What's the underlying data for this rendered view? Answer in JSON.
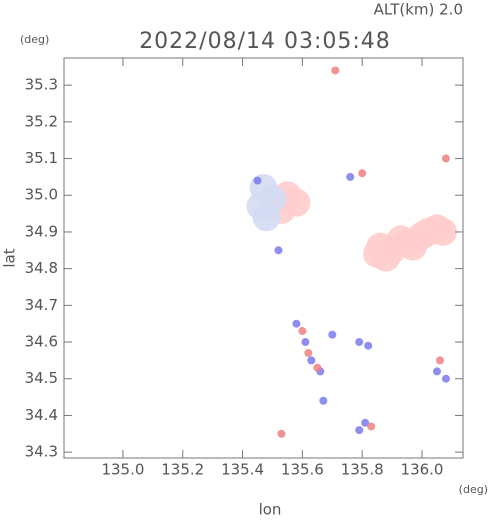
{
  "chart_data": {
    "type": "scatter",
    "title": "2022/08/14 03:05:48",
    "altitude_label": "ALT(km) 2.0",
    "y_unit": "(deg)",
    "x_unit": "(deg)",
    "x_label": "lon",
    "y_label": "lat",
    "xlim": [
      134.803,
      136.137
    ],
    "ylim": [
      34.284,
      35.374
    ],
    "xticks": [
      {
        "value": 135.0,
        "label": "135.0"
      },
      {
        "value": 135.2,
        "label": "135.2"
      },
      {
        "value": 135.4,
        "label": "135.4"
      },
      {
        "value": 135.6,
        "label": "135.6"
      },
      {
        "value": 135.8,
        "label": "135.8"
      },
      {
        "value": 136.0,
        "label": "136.0"
      }
    ],
    "yticks": [
      {
        "value": 34.3,
        "label": "34.3"
      },
      34.4,
      34.5,
      34.6,
      34.7,
      34.8,
      34.9,
      {
        "value": 35.0,
        "label": "35.0"
      },
      35.1,
      35.2,
      35.3
    ],
    "series": [
      {
        "color": "#ffcccc",
        "x": [
          135.85,
          135.9,
          135.95,
          136.0,
          136.05,
          135.88,
          135.97,
          136.02,
          136.07,
          135.93,
          135.86,
          135.55,
          135.58,
          135.53
        ],
        "y": [
          34.84,
          34.85,
          34.87,
          34.89,
          34.91,
          34.83,
          34.86,
          34.9,
          34.9,
          34.88,
          34.86,
          35.0,
          34.98,
          34.96
        ]
      },
      {
        "color": "#d4dcf4",
        "x": [
          135.46,
          135.48,
          135.5,
          135.47
        ],
        "y": [
          34.97,
          34.94,
          34.99,
          35.02
        ]
      },
      {
        "color": "#7a7aee",
        "x": [
          135.58,
          135.61,
          135.63,
          135.66,
          135.79,
          135.82,
          136.08,
          136.05,
          135.79,
          135.81,
          135.67,
          135.45,
          135.76,
          135.7,
          135.52
        ],
        "y": [
          34.65,
          34.6,
          34.55,
          34.52,
          34.6,
          34.59,
          34.5,
          34.52,
          34.36,
          34.38,
          34.44,
          35.04,
          35.05,
          34.62,
          34.85
        ]
      },
      {
        "color": "#f08080",
        "x": [
          135.62,
          135.65,
          135.8,
          136.08,
          135.71,
          135.53,
          135.83,
          136.06,
          135.6
        ],
        "y": [
          34.57,
          34.53,
          35.06,
          35.1,
          35.34,
          34.35,
          34.37,
          34.55,
          34.63
        ]
      }
    ]
  }
}
